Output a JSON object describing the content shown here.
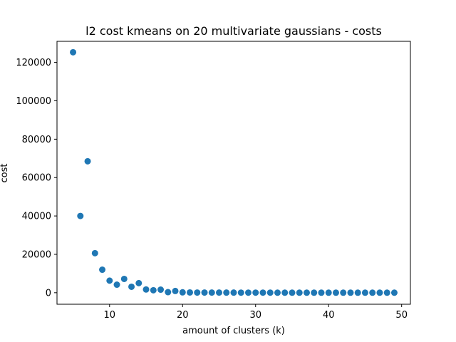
{
  "chart_data": {
    "type": "scatter",
    "title": "l2 cost kmeans on 20 multivariate gaussians - costs",
    "xlabel": "amount of clusters (k)",
    "ylabel": "cost",
    "xlim": [
      2.8,
      51.2
    ],
    "ylim": [
      -6000,
      131000
    ],
    "xticks": [
      10,
      20,
      30,
      40,
      50
    ],
    "yticks": [
      0,
      20000,
      40000,
      60000,
      80000,
      100000,
      120000
    ],
    "grid": false,
    "marker_color": "#1f77b4",
    "series": [
      {
        "x": [
          5,
          6,
          7,
          8,
          9,
          10,
          11,
          12,
          13,
          14,
          15,
          16,
          17,
          18,
          19,
          20,
          21,
          22,
          23,
          24,
          25,
          26,
          27,
          28,
          29,
          30,
          31,
          32,
          33,
          34,
          35,
          36,
          37,
          38,
          39,
          40,
          41,
          42,
          43,
          44,
          45,
          46,
          47,
          48,
          49
        ],
        "y": [
          125300,
          40000,
          68500,
          20600,
          12000,
          6300,
          4200,
          7200,
          3100,
          5000,
          1700,
          1300,
          1600,
          300,
          900,
          200,
          150,
          100,
          100,
          80,
          80,
          60,
          60,
          50,
          50,
          40,
          40,
          40,
          30,
          30,
          30,
          30,
          20,
          20,
          20,
          20,
          20,
          20,
          20,
          10,
          10,
          10,
          10,
          10,
          10
        ]
      }
    ]
  }
}
